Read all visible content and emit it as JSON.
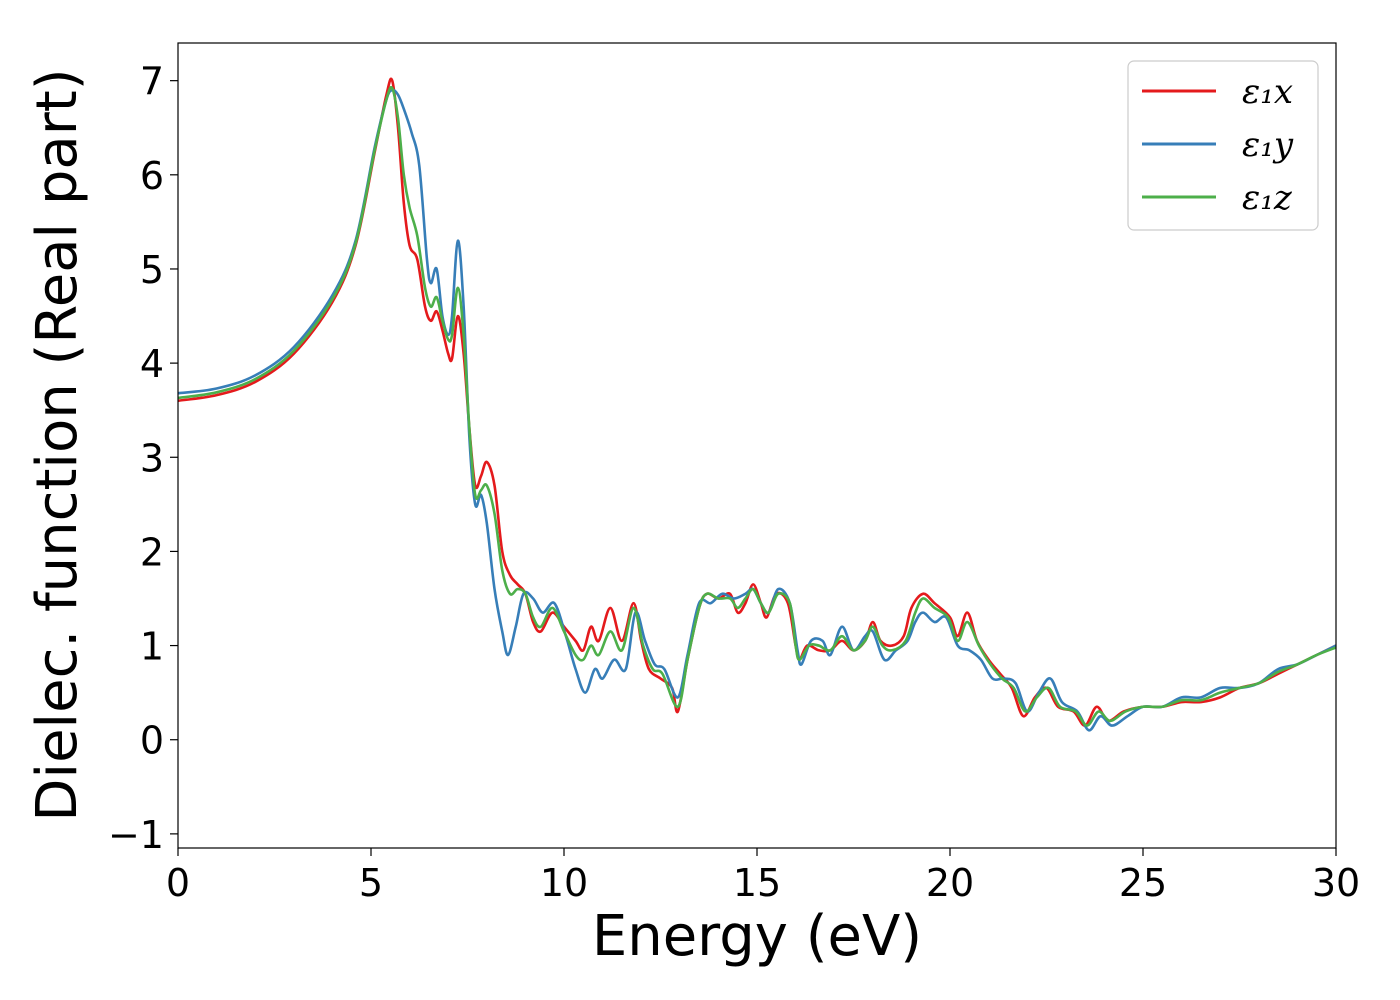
{
  "chart_data": {
    "type": "line",
    "xlabel": "Energy (eV)",
    "ylabel": "Dielec. function (Real part)",
    "xlim": [
      0,
      30
    ],
    "ylim": [
      -1.15,
      7.4
    ],
    "xticks": [
      0,
      5,
      10,
      15,
      20,
      25,
      30
    ],
    "yticks": [
      -1,
      0,
      1,
      2,
      3,
      4,
      5,
      6,
      7
    ],
    "xtick_labels": [
      "0",
      "5",
      "10",
      "15",
      "20",
      "25",
      "30"
    ],
    "ytick_labels": [
      "−1",
      "0",
      "1",
      "2",
      "3",
      "4",
      "5",
      "6",
      "7"
    ],
    "grid": false,
    "legend_position": "top-right",
    "series": [
      {
        "name": "ε₁x",
        "color": "#e41a1c",
        "points": [
          [
            0,
            3.6
          ],
          [
            1,
            3.66
          ],
          [
            2,
            3.8
          ],
          [
            3,
            4.1
          ],
          [
            4,
            4.65
          ],
          [
            4.6,
            5.25
          ],
          [
            5.1,
            6.25
          ],
          [
            5.4,
            6.85
          ],
          [
            5.55,
            7.0
          ],
          [
            5.7,
            6.5
          ],
          [
            5.85,
            5.7
          ],
          [
            6.0,
            5.25
          ],
          [
            6.2,
            5.1
          ],
          [
            6.4,
            4.6
          ],
          [
            6.55,
            4.45
          ],
          [
            6.7,
            4.55
          ],
          [
            6.85,
            4.35
          ],
          [
            7.0,
            4.1
          ],
          [
            7.1,
            4.05
          ],
          [
            7.25,
            4.5
          ],
          [
            7.4,
            4.1
          ],
          [
            7.55,
            3.3
          ],
          [
            7.7,
            2.7
          ],
          [
            7.85,
            2.8
          ],
          [
            8.0,
            2.95
          ],
          [
            8.2,
            2.7
          ],
          [
            8.4,
            2.0
          ],
          [
            8.6,
            1.75
          ],
          [
            8.8,
            1.65
          ],
          [
            9.0,
            1.55
          ],
          [
            9.2,
            1.25
          ],
          [
            9.4,
            1.15
          ],
          [
            9.7,
            1.35
          ],
          [
            10.0,
            1.2
          ],
          [
            10.3,
            1.05
          ],
          [
            10.5,
            0.95
          ],
          [
            10.7,
            1.2
          ],
          [
            10.9,
            1.05
          ],
          [
            11.2,
            1.4
          ],
          [
            11.5,
            1.05
          ],
          [
            11.8,
            1.45
          ],
          [
            12.0,
            1.05
          ],
          [
            12.2,
            0.75
          ],
          [
            12.5,
            0.65
          ],
          [
            12.8,
            0.55
          ],
          [
            12.95,
            0.3
          ],
          [
            13.2,
            0.85
          ],
          [
            13.5,
            1.4
          ],
          [
            13.7,
            1.55
          ],
          [
            14.0,
            1.5
          ],
          [
            14.3,
            1.55
          ],
          [
            14.5,
            1.35
          ],
          [
            14.7,
            1.45
          ],
          [
            14.9,
            1.65
          ],
          [
            15.1,
            1.45
          ],
          [
            15.25,
            1.3
          ],
          [
            15.5,
            1.55
          ],
          [
            15.8,
            1.45
          ],
          [
            16.0,
            1.0
          ],
          [
            16.1,
            0.85
          ],
          [
            16.3,
            1.0
          ],
          [
            16.6,
            0.95
          ],
          [
            16.9,
            0.95
          ],
          [
            17.2,
            1.05
          ],
          [
            17.5,
            0.95
          ],
          [
            17.8,
            1.05
          ],
          [
            18.0,
            1.25
          ],
          [
            18.2,
            1.05
          ],
          [
            18.5,
            1.0
          ],
          [
            18.8,
            1.1
          ],
          [
            19.0,
            1.4
          ],
          [
            19.3,
            1.55
          ],
          [
            19.6,
            1.45
          ],
          [
            20.0,
            1.3
          ],
          [
            20.2,
            1.1
          ],
          [
            20.45,
            1.35
          ],
          [
            20.7,
            1.05
          ],
          [
            21.0,
            0.85
          ],
          [
            21.3,
            0.7
          ],
          [
            21.6,
            0.55
          ],
          [
            21.9,
            0.25
          ],
          [
            22.2,
            0.45
          ],
          [
            22.5,
            0.55
          ],
          [
            22.8,
            0.35
          ],
          [
            23.2,
            0.3
          ],
          [
            23.5,
            0.15
          ],
          [
            23.8,
            0.35
          ],
          [
            24.1,
            0.2
          ],
          [
            24.5,
            0.3
          ],
          [
            25.0,
            0.35
          ],
          [
            25.5,
            0.35
          ],
          [
            26.0,
            0.4
          ],
          [
            26.5,
            0.4
          ],
          [
            27.0,
            0.45
          ],
          [
            27.5,
            0.55
          ],
          [
            28.0,
            0.6
          ],
          [
            28.5,
            0.7
          ],
          [
            29.0,
            0.8
          ],
          [
            29.5,
            0.9
          ],
          [
            30,
            1.0
          ]
        ]
      },
      {
        "name": "ε₁y",
        "color": "#377eb8",
        "points": [
          [
            0,
            3.68
          ],
          [
            1,
            3.73
          ],
          [
            2,
            3.87
          ],
          [
            3,
            4.17
          ],
          [
            4,
            4.72
          ],
          [
            4.6,
            5.3
          ],
          [
            5.1,
            6.3
          ],
          [
            5.4,
            6.8
          ],
          [
            5.55,
            6.9
          ],
          [
            5.7,
            6.85
          ],
          [
            5.85,
            6.7
          ],
          [
            6.05,
            6.45
          ],
          [
            6.25,
            6.1
          ],
          [
            6.45,
            5.1
          ],
          [
            6.55,
            4.85
          ],
          [
            6.7,
            5.0
          ],
          [
            6.85,
            4.5
          ],
          [
            7.0,
            4.3
          ],
          [
            7.1,
            4.5
          ],
          [
            7.25,
            5.3
          ],
          [
            7.4,
            4.6
          ],
          [
            7.55,
            3.2
          ],
          [
            7.7,
            2.5
          ],
          [
            7.85,
            2.6
          ],
          [
            8.0,
            2.3
          ],
          [
            8.2,
            1.6
          ],
          [
            8.4,
            1.15
          ],
          [
            8.55,
            0.9
          ],
          [
            8.75,
            1.2
          ],
          [
            8.95,
            1.55
          ],
          [
            9.2,
            1.5
          ],
          [
            9.45,
            1.35
          ],
          [
            9.75,
            1.45
          ],
          [
            10.05,
            1.1
          ],
          [
            10.3,
            0.75
          ],
          [
            10.55,
            0.5
          ],
          [
            10.8,
            0.75
          ],
          [
            11.0,
            0.65
          ],
          [
            11.3,
            0.85
          ],
          [
            11.6,
            0.75
          ],
          [
            11.85,
            1.35
          ],
          [
            12.1,
            1.05
          ],
          [
            12.35,
            0.8
          ],
          [
            12.6,
            0.75
          ],
          [
            12.95,
            0.45
          ],
          [
            13.2,
            0.9
          ],
          [
            13.5,
            1.45
          ],
          [
            13.8,
            1.45
          ],
          [
            14.1,
            1.55
          ],
          [
            14.4,
            1.5
          ],
          [
            14.7,
            1.55
          ],
          [
            14.9,
            1.6
          ],
          [
            15.1,
            1.45
          ],
          [
            15.3,
            1.35
          ],
          [
            15.55,
            1.6
          ],
          [
            15.85,
            1.45
          ],
          [
            16.05,
            0.95
          ],
          [
            16.15,
            0.8
          ],
          [
            16.4,
            1.05
          ],
          [
            16.7,
            1.05
          ],
          [
            16.9,
            0.9
          ],
          [
            17.2,
            1.2
          ],
          [
            17.5,
            0.95
          ],
          [
            17.8,
            1.1
          ],
          [
            18.0,
            1.15
          ],
          [
            18.3,
            0.85
          ],
          [
            18.6,
            0.95
          ],
          [
            18.9,
            1.05
          ],
          [
            19.1,
            1.25
          ],
          [
            19.3,
            1.35
          ],
          [
            19.6,
            1.25
          ],
          [
            19.9,
            1.3
          ],
          [
            20.2,
            1.0
          ],
          [
            20.5,
            0.95
          ],
          [
            20.8,
            0.85
          ],
          [
            21.1,
            0.65
          ],
          [
            21.4,
            0.65
          ],
          [
            21.7,
            0.6
          ],
          [
            22.0,
            0.3
          ],
          [
            22.3,
            0.5
          ],
          [
            22.6,
            0.65
          ],
          [
            22.9,
            0.4
          ],
          [
            23.3,
            0.3
          ],
          [
            23.6,
            0.1
          ],
          [
            23.9,
            0.25
          ],
          [
            24.2,
            0.15
          ],
          [
            24.6,
            0.25
          ],
          [
            25.0,
            0.35
          ],
          [
            25.5,
            0.35
          ],
          [
            26.0,
            0.45
          ],
          [
            26.5,
            0.45
          ],
          [
            27.0,
            0.55
          ],
          [
            27.5,
            0.55
          ],
          [
            28.0,
            0.6
          ],
          [
            28.5,
            0.75
          ],
          [
            29.0,
            0.8
          ],
          [
            29.5,
            0.9
          ],
          [
            30,
            1.0
          ]
        ]
      },
      {
        "name": "ε₁z",
        "color": "#4daf4a",
        "points": [
          [
            0,
            3.63
          ],
          [
            1,
            3.69
          ],
          [
            2,
            3.83
          ],
          [
            3,
            4.13
          ],
          [
            4,
            4.68
          ],
          [
            4.6,
            5.27
          ],
          [
            5.1,
            6.27
          ],
          [
            5.4,
            6.8
          ],
          [
            5.55,
            6.92
          ],
          [
            5.7,
            6.6
          ],
          [
            5.85,
            6.0
          ],
          [
            6.0,
            5.65
          ],
          [
            6.2,
            5.35
          ],
          [
            6.4,
            4.8
          ],
          [
            6.55,
            4.6
          ],
          [
            6.7,
            4.7
          ],
          [
            6.85,
            4.45
          ],
          [
            7.0,
            4.25
          ],
          [
            7.1,
            4.3
          ],
          [
            7.25,
            4.8
          ],
          [
            7.4,
            4.3
          ],
          [
            7.55,
            3.3
          ],
          [
            7.7,
            2.6
          ],
          [
            7.85,
            2.65
          ],
          [
            8.0,
            2.7
          ],
          [
            8.2,
            2.4
          ],
          [
            8.4,
            1.8
          ],
          [
            8.6,
            1.55
          ],
          [
            8.8,
            1.6
          ],
          [
            9.0,
            1.55
          ],
          [
            9.2,
            1.3
          ],
          [
            9.4,
            1.2
          ],
          [
            9.7,
            1.4
          ],
          [
            10.0,
            1.15
          ],
          [
            10.3,
            0.9
          ],
          [
            10.5,
            0.85
          ],
          [
            10.7,
            1.0
          ],
          [
            10.9,
            0.9
          ],
          [
            11.2,
            1.15
          ],
          [
            11.5,
            0.95
          ],
          [
            11.8,
            1.4
          ],
          [
            12.05,
            1.0
          ],
          [
            12.3,
            0.75
          ],
          [
            12.55,
            0.7
          ],
          [
            12.95,
            0.35
          ],
          [
            13.2,
            0.85
          ],
          [
            13.5,
            1.4
          ],
          [
            13.7,
            1.55
          ],
          [
            14.0,
            1.5
          ],
          [
            14.3,
            1.5
          ],
          [
            14.5,
            1.4
          ],
          [
            14.7,
            1.5
          ],
          [
            14.9,
            1.6
          ],
          [
            15.1,
            1.45
          ],
          [
            15.3,
            1.35
          ],
          [
            15.55,
            1.55
          ],
          [
            15.85,
            1.45
          ],
          [
            16.0,
            1.0
          ],
          [
            16.1,
            0.85
          ],
          [
            16.35,
            1.0
          ],
          [
            16.6,
            1.0
          ],
          [
            16.9,
            0.95
          ],
          [
            17.2,
            1.1
          ],
          [
            17.5,
            0.95
          ],
          [
            17.8,
            1.05
          ],
          [
            18.0,
            1.2
          ],
          [
            18.25,
            1.0
          ],
          [
            18.5,
            0.95
          ],
          [
            18.85,
            1.05
          ],
          [
            19.1,
            1.35
          ],
          [
            19.3,
            1.5
          ],
          [
            19.6,
            1.4
          ],
          [
            19.95,
            1.3
          ],
          [
            20.2,
            1.05
          ],
          [
            20.45,
            1.25
          ],
          [
            20.75,
            1.0
          ],
          [
            21.05,
            0.8
          ],
          [
            21.35,
            0.65
          ],
          [
            21.65,
            0.55
          ],
          [
            21.95,
            0.3
          ],
          [
            22.25,
            0.45
          ],
          [
            22.55,
            0.55
          ],
          [
            22.85,
            0.35
          ],
          [
            23.25,
            0.3
          ],
          [
            23.55,
            0.15
          ],
          [
            23.85,
            0.3
          ],
          [
            24.15,
            0.2
          ],
          [
            24.55,
            0.3
          ],
          [
            25.0,
            0.35
          ],
          [
            25.5,
            0.35
          ],
          [
            26.0,
            0.42
          ],
          [
            26.5,
            0.42
          ],
          [
            27.0,
            0.5
          ],
          [
            27.5,
            0.55
          ],
          [
            28.0,
            0.6
          ],
          [
            28.5,
            0.72
          ],
          [
            29.0,
            0.8
          ],
          [
            29.5,
            0.9
          ],
          [
            30,
            0.98
          ]
        ]
      }
    ]
  }
}
